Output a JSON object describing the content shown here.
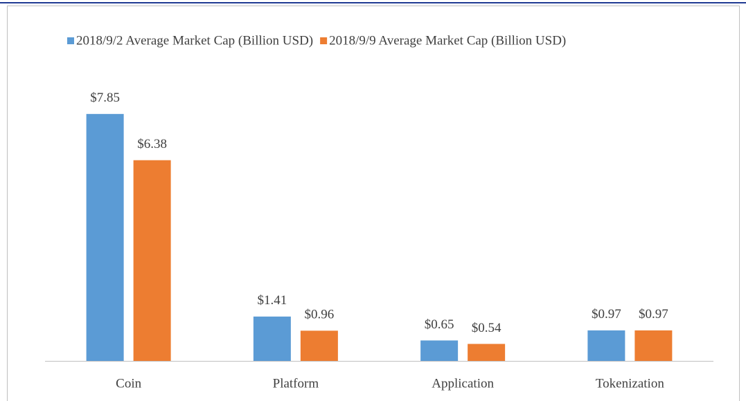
{
  "chart_data": {
    "type": "bar",
    "categories": [
      "Coin",
      "Platform",
      "Application",
      "Tokenization"
    ],
    "series": [
      {
        "name": "2018/9/2 Average Market Cap (Billion USD)",
        "color": "#5b9bd5",
        "values": [
          7.85,
          1.41,
          0.65,
          0.97
        ],
        "value_labels": [
          "$7.85",
          "$1.41",
          "$0.65",
          "$0.97"
        ]
      },
      {
        "name": "2018/9/9 Average Market Cap (Billion USD)",
        "color": "#ed7d31",
        "values": [
          6.38,
          0.96,
          0.54,
          0.97
        ],
        "value_labels": [
          "$6.38",
          "$0.96",
          "$0.54",
          "$0.97"
        ]
      }
    ],
    "ylim": [
      0,
      9
    ],
    "legend": "top"
  }
}
